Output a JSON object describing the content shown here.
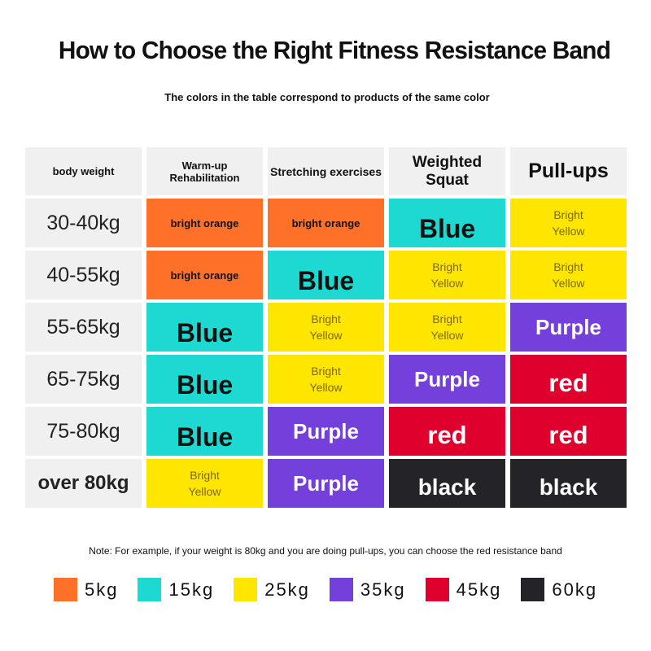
{
  "title": "How to Choose the Right Fitness Resistance Band",
  "subtitle": "The colors in the table correspond to products of the same color",
  "note": "Note: For example, if your weight is 80kg and you are doing pull-ups, you can choose the red resistance band",
  "colors": {
    "orange": "#ff7029",
    "blue": "#1dd9d1",
    "yellow": "#ffe600",
    "purple": "#7440dc",
    "red": "#e0002e",
    "black": "#232328",
    "header_bg": "#f0f0f0"
  },
  "table": {
    "headers": [
      "body weight",
      "Warm-up Rehabilitation",
      "Stretching exercises",
      "Weighted Squat",
      "Pull-ups"
    ],
    "rows": [
      {
        "weight": "30-40kg",
        "cells": [
          {
            "text": "bright orange",
            "color": "orange"
          },
          {
            "text": "bright orange",
            "color": "orange"
          },
          {
            "text": "Blue",
            "color": "blue"
          },
          {
            "text": "Bright\nYellow",
            "color": "yellow"
          }
        ]
      },
      {
        "weight": "40-55kg",
        "cells": [
          {
            "text": "bright orange",
            "color": "orange"
          },
          {
            "text": "Blue",
            "color": "blue"
          },
          {
            "text": "Bright\nYellow",
            "color": "yellow"
          },
          {
            "text": "Bright\nYellow",
            "color": "yellow"
          }
        ]
      },
      {
        "weight": "55-65kg",
        "cells": [
          {
            "text": "Blue",
            "color": "blue"
          },
          {
            "text": "Bright\nYellow",
            "color": "yellow"
          },
          {
            "text": "Bright\nYellow",
            "color": "yellow"
          },
          {
            "text": "Purple",
            "color": "purple"
          }
        ]
      },
      {
        "weight": "65-75kg",
        "cells": [
          {
            "text": "Blue",
            "color": "blue"
          },
          {
            "text": "Bright\nYellow",
            "color": "yellow"
          },
          {
            "text": "Purple",
            "color": "purple"
          },
          {
            "text": "red",
            "color": "red"
          }
        ]
      },
      {
        "weight": "75-80kg",
        "cells": [
          {
            "text": "Blue",
            "color": "blue"
          },
          {
            "text": "Purple",
            "color": "purple"
          },
          {
            "text": "red",
            "color": "red"
          },
          {
            "text": "red",
            "color": "red"
          }
        ]
      },
      {
        "weight": "over 80kg",
        "cells": [
          {
            "text": "Bright\nYellow",
            "color": "yellow"
          },
          {
            "text": "Purple",
            "color": "purple"
          },
          {
            "text": "black",
            "color": "black"
          },
          {
            "text": "black",
            "color": "black"
          }
        ]
      }
    ]
  },
  "legend": [
    {
      "label": "5kg",
      "color": "orange"
    },
    {
      "label": "15kg",
      "color": "blue"
    },
    {
      "label": "25kg",
      "color": "yellow"
    },
    {
      "label": "35kg",
      "color": "purple"
    },
    {
      "label": "45kg",
      "color": "red"
    },
    {
      "label": "60kg",
      "color": "black"
    }
  ]
}
